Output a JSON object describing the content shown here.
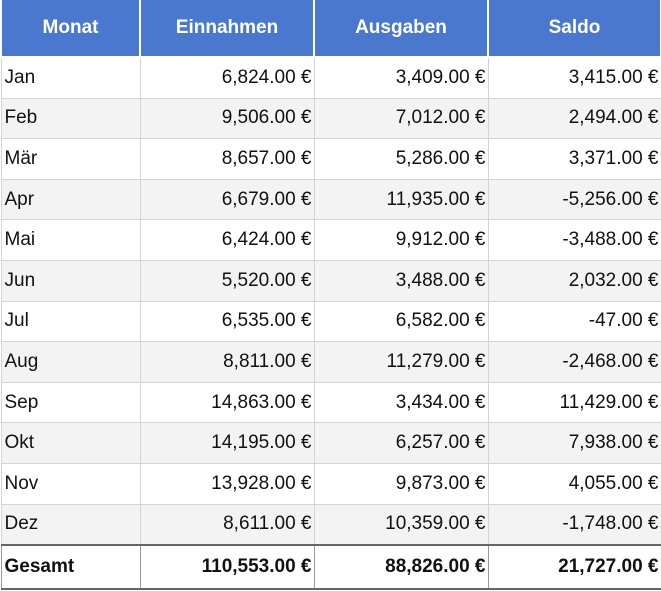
{
  "table": {
    "header": [
      "Monat",
      "Einnahmen",
      "Ausgaben",
      "Saldo"
    ],
    "rows": [
      [
        "Jan",
        "6,824.00 €",
        "3,409.00 €",
        "3,415.00 €"
      ],
      [
        "Feb",
        "9,506.00 €",
        "7,012.00 €",
        "2,494.00 €"
      ],
      [
        "Mär",
        "8,657.00 €",
        "5,286.00 €",
        "3,371.00 €"
      ],
      [
        "Apr",
        "6,679.00 €",
        "11,935.00 €",
        "-5,256.00 €"
      ],
      [
        "Mai",
        "6,424.00 €",
        "9,912.00 €",
        "-3,488.00 €"
      ],
      [
        "Jun",
        "5,520.00 €",
        "3,488.00 €",
        "2,032.00 €"
      ],
      [
        "Jul",
        "6,535.00 €",
        "6,582.00 €",
        "-47.00 €"
      ],
      [
        "Aug",
        "8,811.00 €",
        "11,279.00 €",
        "-2,468.00 €"
      ],
      [
        "Sep",
        "14,863.00 €",
        "3,434.00 €",
        "11,429.00 €"
      ],
      [
        "Okt",
        "14,195.00 €",
        "6,257.00 €",
        "7,938.00 €"
      ],
      [
        "Nov",
        "13,928.00 €",
        "9,873.00 €",
        "4,055.00 €"
      ],
      [
        "Dez",
        "8,611.00 €",
        "10,359.00 €",
        "-1,748.00 €"
      ]
    ],
    "footer": [
      "Gesamt",
      "110,553.00 €",
      "88,826.00 €",
      "21,727.00 €"
    ]
  }
}
